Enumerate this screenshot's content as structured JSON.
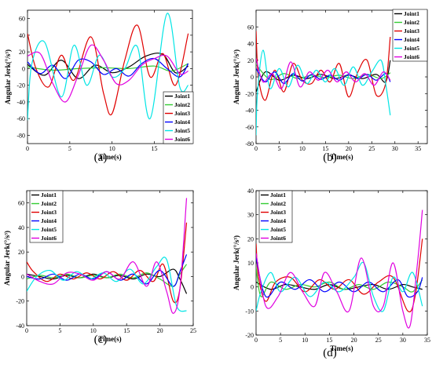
{
  "figure": {
    "captions": [
      "(a)",
      "(b)",
      "(c)",
      "(d)"
    ]
  },
  "chart_data": [
    {
      "type": "line",
      "caption": "(a)",
      "xlabel": "Time(s)",
      "ylabel": "Angular Jerk(°/s³)",
      "xlim": [
        0,
        19.5
      ],
      "ylim": [
        -90,
        70
      ],
      "xticks": [
        "0",
        "5",
        "10",
        "15"
      ],
      "yticks": [
        "-80",
        "-60",
        "-40",
        "-20",
        "0",
        "20",
        "40",
        "60"
      ],
      "legend": "bottom-right",
      "series": [
        {
          "name": "Joint1",
          "color": "#000000",
          "x": [
            0,
            2,
            4,
            6,
            8,
            10,
            12,
            14,
            16,
            17.5,
            19
          ],
          "y": [
            5,
            -8,
            10,
            -12,
            4,
            -5,
            2,
            15,
            17,
            -5,
            3
          ]
        },
        {
          "name": "Joint2",
          "color": "#33cc33",
          "x": [
            0,
            3,
            6,
            9,
            12,
            15,
            17,
            19
          ],
          "y": [
            2,
            -2,
            0,
            1,
            0,
            3,
            -3,
            6
          ]
        },
        {
          "name": "Joint3",
          "color": "#e00000",
          "x": [
            0,
            1,
            2.5,
            4,
            5.5,
            7.5,
            9,
            10,
            11.5,
            13,
            14.5,
            16,
            17.5,
            19
          ],
          "y": [
            42,
            0,
            -22,
            16,
            -14,
            38,
            -30,
            -54,
            10,
            52,
            -10,
            18,
            -20,
            42
          ]
        },
        {
          "name": "Joint4",
          "color": "#0000ff",
          "x": [
            0,
            1.5,
            3,
            4.5,
            6,
            7.5,
            9,
            10.5,
            12,
            13.5,
            15,
            16.5,
            18,
            19
          ],
          "y": [
            8,
            -6,
            4,
            -12,
            10,
            8,
            -7,
            0,
            -9,
            6,
            12,
            0,
            -10,
            6
          ]
        },
        {
          "name": "Joint5",
          "color": "#00e5e5",
          "x": [
            0,
            0.5,
            2,
            4,
            5.5,
            7,
            8.5,
            10,
            11.5,
            13,
            14.5,
            16.5,
            18,
            19
          ],
          "y": [
            -62,
            5,
            32,
            -34,
            28,
            -20,
            16,
            -10,
            0,
            26,
            -60,
            66,
            -22,
            -20
          ]
        },
        {
          "name": "Joint6",
          "color": "#e000e0",
          "x": [
            0,
            1.5,
            3,
            4.5,
            6,
            7.5,
            9,
            10.5,
            12,
            13.5,
            15,
            16.5,
            18,
            19
          ],
          "y": [
            15,
            18,
            -18,
            -40,
            -8,
            28,
            10,
            -18,
            -14,
            4,
            12,
            15,
            -6,
            -3
          ]
        }
      ]
    },
    {
      "type": "line",
      "caption": "(b)",
      "xlabel": "Time(s)",
      "ylabel": "Angular Jerk(°/s³)",
      "xlim": [
        0,
        37
      ],
      "ylim": [
        -80,
        80
      ],
      "xticks": [
        "0",
        "5",
        "10",
        "15",
        "20",
        "25",
        "30",
        "35"
      ],
      "yticks": [
        "-80",
        "-60",
        "-40",
        "-20",
        "0",
        "20",
        "40",
        "60"
      ],
      "legend": "top-right",
      "series": [
        {
          "name": "Joint1",
          "color": "#000000",
          "x": [
            0,
            2,
            5,
            8,
            11,
            14,
            17,
            20,
            23,
            26,
            28,
            29
          ],
          "y": [
            -18,
            6,
            -4,
            2,
            -2,
            3,
            -2,
            2,
            -2,
            3,
            -6,
            20
          ]
        },
        {
          "name": "Joint2",
          "color": "#33cc33",
          "x": [
            0,
            3,
            6,
            9,
            12,
            15,
            18,
            21,
            24,
            27,
            29
          ],
          "y": [
            15,
            -3,
            4,
            -2,
            2,
            -1,
            2,
            -2,
            3,
            -2,
            5
          ]
        },
        {
          "name": "Joint3",
          "color": "#e00000",
          "x": [
            0,
            0.5,
            2,
            4,
            6,
            8,
            10,
            12,
            14,
            16,
            18,
            20,
            22,
            24,
            26,
            28,
            29
          ],
          "y": [
            55,
            0,
            -28,
            8,
            -18,
            16,
            -4,
            -8,
            8,
            -6,
            16,
            -24,
            6,
            20,
            -22,
            -8,
            48
          ]
        },
        {
          "name": "Joint4",
          "color": "#0000ff",
          "x": [
            0,
            2,
            4,
            6,
            8,
            10,
            12,
            14,
            16,
            18,
            20,
            22,
            24,
            26,
            28,
            29
          ],
          "y": [
            10,
            -6,
            6,
            -8,
            4,
            -5,
            3,
            -3,
            2,
            -4,
            3,
            -2,
            3,
            -4,
            4,
            -6
          ]
        },
        {
          "name": "Joint5",
          "color": "#00e5e5",
          "x": [
            0,
            0.3,
            1.5,
            3,
            5,
            7,
            9,
            11,
            13,
            15,
            17,
            19,
            21,
            23,
            25,
            27,
            28,
            29
          ],
          "y": [
            -70,
            -20,
            32,
            -14,
            10,
            -12,
            14,
            -8,
            8,
            -6,
            10,
            -10,
            12,
            -10,
            6,
            20,
            -8,
            -46
          ]
        },
        {
          "name": "Joint6",
          "color": "#e000e0",
          "x": [
            0,
            1.5,
            3.5,
            5.5,
            7.5,
            9.5,
            11.5,
            13.5,
            15.5,
            17.5,
            19.5,
            21.5,
            23.5,
            25.5,
            27.5,
            29
          ],
          "y": [
            22,
            -6,
            4,
            -14,
            18,
            -12,
            6,
            -4,
            8,
            -6,
            6,
            -6,
            4,
            -10,
            6,
            -4
          ]
        }
      ]
    },
    {
      "type": "line",
      "caption": "(c)",
      "xlabel": "Time(s)",
      "ylabel": "Angular Jerk(°/s³)",
      "xlim": [
        0,
        25
      ],
      "ylim": [
        -40,
        70
      ],
      "xticks": [
        "0",
        "5",
        "10",
        "15",
        "20",
        "25"
      ],
      "yticks": [
        "-40",
        "-20",
        "0",
        "20",
        "40",
        "60"
      ],
      "legend": "top-left",
      "series": [
        {
          "name": "Joint1",
          "color": "#000000",
          "x": [
            0,
            2,
            4,
            6,
            8,
            10,
            12,
            14,
            16,
            18,
            20,
            22,
            23,
            24
          ],
          "y": [
            2,
            0,
            -2,
            1,
            -1,
            2,
            -1,
            1,
            -2,
            2,
            0,
            6,
            -2,
            -14
          ]
        },
        {
          "name": "Joint2",
          "color": "#33cc33",
          "x": [
            0,
            2,
            4,
            6,
            8,
            10,
            12,
            14,
            16,
            18,
            20,
            22,
            23,
            24
          ],
          "y": [
            -2,
            1,
            -1,
            2,
            -1,
            1,
            -1,
            2,
            -1,
            3,
            -2,
            -8,
            2,
            10
          ]
        },
        {
          "name": "Joint3",
          "color": "#e00000",
          "x": [
            0,
            1,
            3,
            5,
            7,
            9,
            11,
            13,
            15,
            17,
            19,
            20.5,
            22,
            23,
            24
          ],
          "y": [
            12,
            4,
            -4,
            2,
            -2,
            3,
            -2,
            4,
            -3,
            5,
            -4,
            10,
            -20,
            -10,
            44
          ]
        },
        {
          "name": "Joint4",
          "color": "#0000ff",
          "x": [
            0,
            2,
            4,
            6,
            8,
            10,
            12,
            14,
            16,
            18,
            20,
            22,
            23,
            24
          ],
          "y": [
            0,
            -2,
            2,
            -3,
            2,
            -2,
            4,
            -3,
            2,
            -6,
            5,
            -8,
            4,
            18
          ]
        },
        {
          "name": "Joint5",
          "color": "#00e5e5",
          "x": [
            0,
            1.5,
            3.5,
            5.5,
            7.5,
            9.5,
            11.5,
            13.5,
            15.5,
            17.5,
            19.5,
            21,
            22.5,
            24
          ],
          "y": [
            -12,
            0,
            5,
            -3,
            4,
            -2,
            3,
            -4,
            6,
            -6,
            8,
            14,
            -24,
            -28
          ]
        },
        {
          "name": "Joint6",
          "color": "#e000e0",
          "x": [
            0,
            2,
            4,
            6,
            8,
            10,
            12,
            14,
            16,
            18,
            19.5,
            21,
            22,
            23,
            24
          ],
          "y": [
            2,
            -4,
            -6,
            3,
            2,
            -3,
            4,
            -2,
            12,
            -8,
            12,
            -12,
            -30,
            -10,
            64
          ]
        }
      ]
    },
    {
      "type": "line",
      "caption": "(d)",
      "xlabel": "Time(s)",
      "ylabel": "Angular Jerk(°/s³)",
      "xlim": [
        0,
        35
      ],
      "ylim": [
        -20,
        40
      ],
      "xticks": [
        "0",
        "5",
        "10",
        "15",
        "20",
        "25",
        "30",
        "35"
      ],
      "yticks": [
        "-20",
        "-10",
        "0",
        "10",
        "20",
        "30",
        "40"
      ],
      "legend": "top-left",
      "series": [
        {
          "name": "Joint1",
          "color": "#000000",
          "x": [
            0,
            3,
            6,
            9,
            12,
            15,
            18,
            21,
            24,
            27,
            30,
            32,
            34
          ],
          "y": [
            2,
            -1,
            1,
            0,
            -1,
            1,
            -1,
            0,
            1,
            -1,
            1,
            0,
            -1
          ]
        },
        {
          "name": "Joint2",
          "color": "#33cc33",
          "x": [
            0,
            1,
            3,
            6,
            9,
            12,
            15,
            18,
            21,
            24,
            27,
            30,
            32,
            34
          ],
          "y": [
            8,
            -4,
            2,
            -1,
            1,
            0,
            2,
            -1,
            1,
            -1,
            2,
            0,
            -2,
            3
          ]
        },
        {
          "name": "Joint3",
          "color": "#e00000",
          "x": [
            0,
            0.5,
            2,
            4,
            7,
            10,
            13,
            16,
            19,
            22,
            25,
            28,
            31,
            32.5,
            34
          ],
          "y": [
            18,
            4,
            -6,
            2,
            4,
            -2,
            3,
            -1,
            3,
            -3,
            2,
            4,
            -10,
            -4,
            20
          ]
        },
        {
          "name": "Joint4",
          "color": "#0000ff",
          "x": [
            0,
            2,
            5,
            8,
            11,
            14,
            17,
            20,
            23,
            26,
            29,
            31,
            33,
            34
          ],
          "y": [
            12,
            -4,
            2,
            -1,
            3,
            -2,
            2,
            -2,
            2,
            -2,
            3,
            -4,
            -2,
            4
          ]
        },
        {
          "name": "Joint5",
          "color": "#00e5e5",
          "x": [
            0,
            1,
            3,
            5,
            8,
            11,
            14,
            17,
            20,
            22,
            24,
            26,
            28,
            30,
            32,
            34
          ],
          "y": [
            -10,
            -2,
            6,
            -2,
            4,
            -4,
            2,
            -2,
            4,
            10,
            -4,
            -10,
            4,
            -2,
            6,
            -8
          ]
        },
        {
          "name": "Joint6",
          "color": "#e000e0",
          "x": [
            0,
            2,
            4.5,
            7,
            9.5,
            12,
            14,
            16.5,
            19,
            21.5,
            24,
            26,
            28,
            30,
            31.5,
            33,
            34
          ],
          "y": [
            14,
            -8,
            -4,
            6,
            -2,
            -8,
            6,
            -2,
            -10,
            12,
            -8,
            -8,
            10,
            -10,
            -16,
            10,
            32
          ]
        }
      ]
    }
  ]
}
